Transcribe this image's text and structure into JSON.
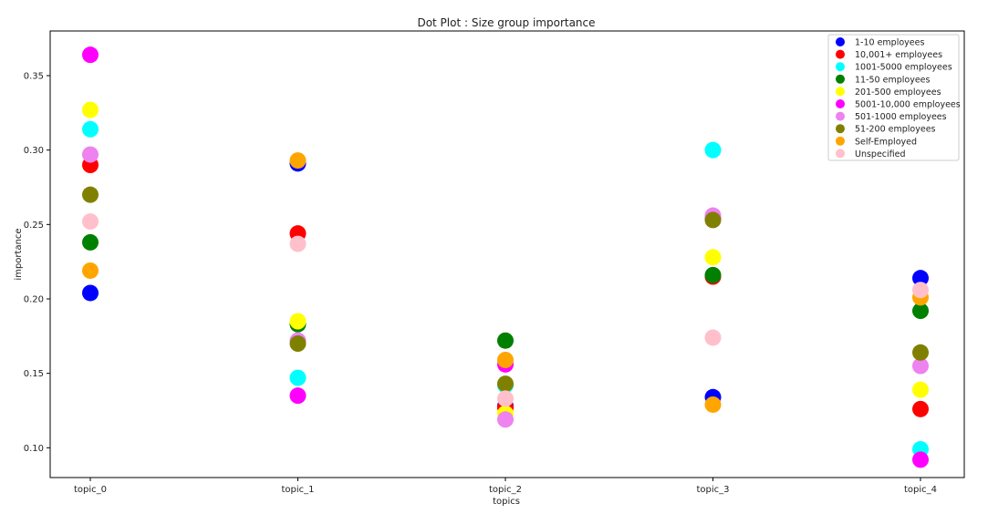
{
  "chart_data": {
    "type": "scatter",
    "title": "Dot Plot : Size group importance",
    "xlabel": "topics",
    "ylabel": "importance",
    "categories": [
      "topic_0",
      "topic_1",
      "topic_2",
      "topic_3",
      "topic_4"
    ],
    "yticks": [
      0.1,
      0.15,
      0.2,
      0.25,
      0.3,
      0.35
    ],
    "ytick_labels": [
      "0.10",
      "0.15",
      "0.20",
      "0.25",
      "0.30",
      "0.35"
    ],
    "ylim": [
      0.08,
      0.38
    ],
    "grid": false,
    "legend_position": "top-right",
    "series": [
      {
        "name": "1-10 employees",
        "color": "#0000ff",
        "values": [
          0.204,
          0.291,
          0.128,
          0.134,
          0.214
        ]
      },
      {
        "name": "10,001+ employees",
        "color": "#ff0000",
        "values": [
          0.29,
          0.244,
          0.127,
          0.215,
          0.126
        ]
      },
      {
        "name": "1001-5000 employees",
        "color": "#00ffff",
        "values": [
          0.314,
          0.147,
          0.142,
          0.3,
          0.099
        ]
      },
      {
        "name": "11-50 employees",
        "color": "#008000",
        "values": [
          0.238,
          0.183,
          0.172,
          0.216,
          0.192
        ]
      },
      {
        "name": "201-500 employees",
        "color": "#ffff00",
        "values": [
          0.327,
          0.185,
          0.123,
          0.228,
          0.139
        ]
      },
      {
        "name": "5001-10,000 employees",
        "color": "#ff00ff",
        "values": [
          0.364,
          0.135,
          0.156,
          0.254,
          0.092
        ]
      },
      {
        "name": "501-1000 employees",
        "color": "#ee82ee",
        "values": [
          0.297,
          0.172,
          0.119,
          0.256,
          0.155
        ]
      },
      {
        "name": "51-200 employees",
        "color": "#808000",
        "values": [
          0.27,
          0.17,
          0.143,
          0.253,
          0.164
        ]
      },
      {
        "name": "Self-Employed",
        "color": "#ffa500",
        "values": [
          0.219,
          0.293,
          0.159,
          0.129,
          0.201
        ]
      },
      {
        "name": "Unspecified",
        "color": "#ffc0cb",
        "values": [
          0.252,
          0.237,
          0.133,
          0.174,
          0.206
        ]
      }
    ]
  }
}
